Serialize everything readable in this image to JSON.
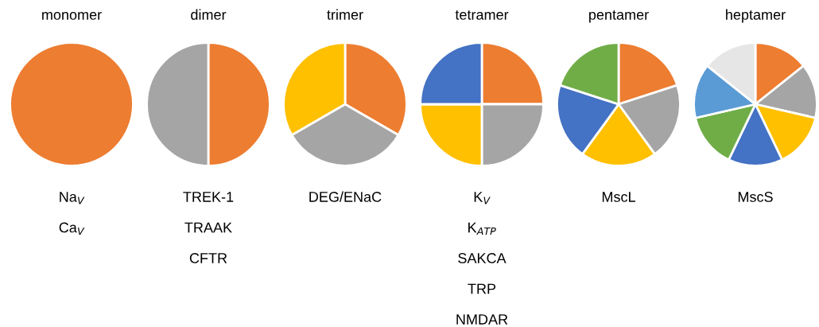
{
  "chart_data": [
    {
      "type": "pie",
      "title": "monomer",
      "categories": [
        null
      ],
      "values": [
        100
      ],
      "colors": [
        "#ed7d31"
      ],
      "annotations": [
        "Na$_{V}$",
        "Ca$_{V}$"
      ]
    },
    {
      "type": "pie",
      "title": "dimer",
      "categories": [
        null,
        null
      ],
      "values": [
        50,
        50
      ],
      "colors": [
        "#ed7d31",
        "#a5a5a5"
      ],
      "annotations": [
        "TREK-1",
        "TRAAK",
        "CFTR"
      ]
    },
    {
      "type": "pie",
      "title": "trimer",
      "categories": [
        null,
        null,
        null
      ],
      "values": [
        33.33,
        33.33,
        33.33
      ],
      "colors": [
        "#ed7d31",
        "#a5a5a5",
        "#ffc000"
      ],
      "annotations": [
        "DEG/ENaC"
      ]
    },
    {
      "type": "pie",
      "title": "tetramer",
      "categories": [
        null,
        null,
        null,
        null
      ],
      "values": [
        25,
        25,
        25,
        25
      ],
      "colors": [
        "#ed7d31",
        "#a5a5a5",
        "#ffc000",
        "#4472c4"
      ],
      "annotations": [
        "K$_{V}$",
        "K$_{ATP}$",
        "SAKCA",
        "TRP",
        "NMDAR"
      ]
    },
    {
      "type": "pie",
      "title": "pentamer",
      "categories": [
        null,
        null,
        null,
        null,
        null
      ],
      "values": [
        20,
        20,
        20,
        20,
        20
      ],
      "colors": [
        "#ed7d31",
        "#a5a5a5",
        "#ffc000",
        "#4472c4",
        "#70ad47"
      ],
      "annotations": [
        "MscL"
      ]
    },
    {
      "type": "pie",
      "title": "heptamer",
      "categories": [
        null,
        null,
        null,
        null,
        null,
        null,
        null
      ],
      "values": [
        14.29,
        14.29,
        14.29,
        14.29,
        14.29,
        14.29,
        14.29
      ],
      "colors": [
        "#ed7d31",
        "#a5a5a5",
        "#ffc000",
        "#4472c4",
        "#70ad47",
        "#5b9bd5",
        "#e7e6e6"
      ],
      "annotations": [
        "MscS"
      ]
    }
  ]
}
